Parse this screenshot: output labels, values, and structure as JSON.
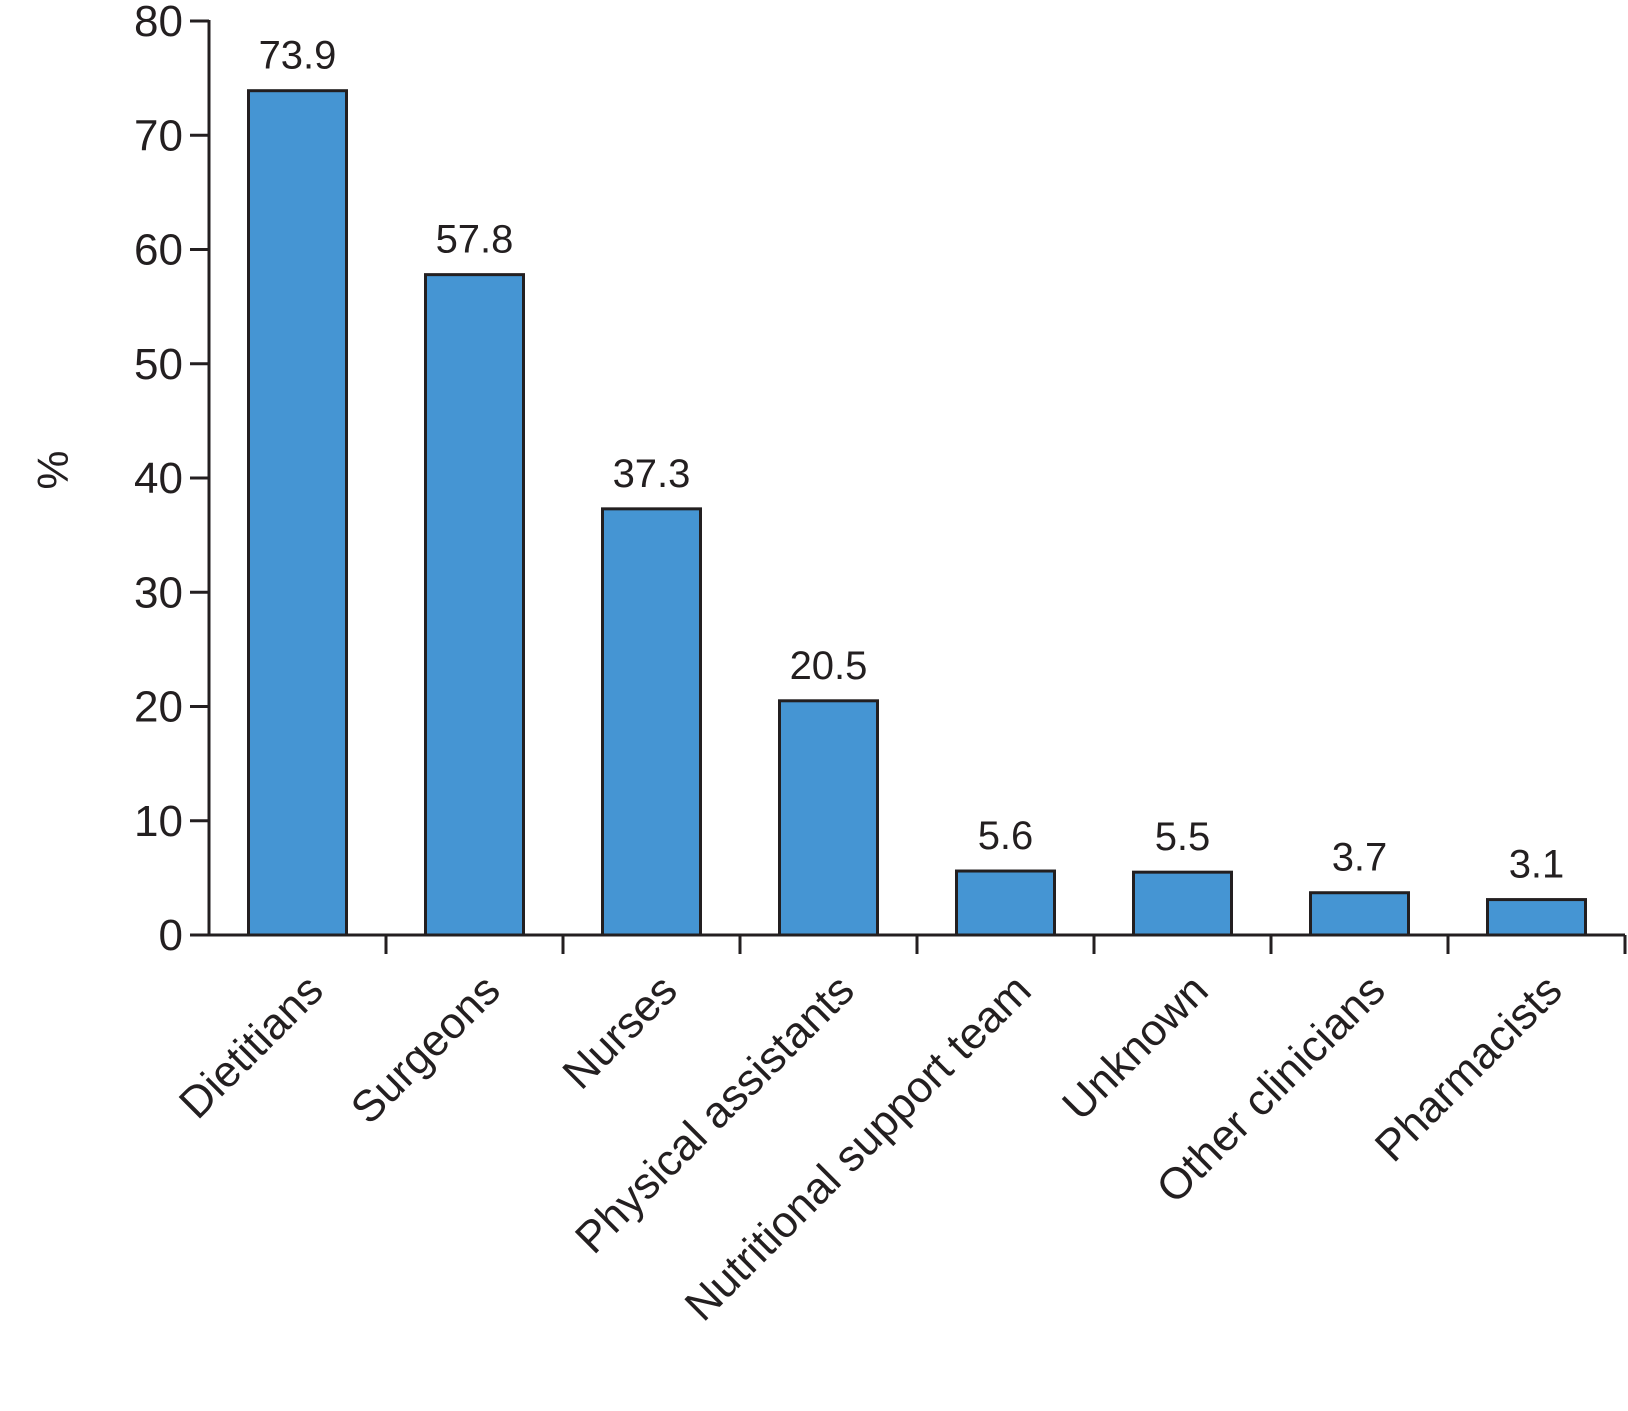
{
  "chart_data": {
    "type": "bar",
    "title": "",
    "xlabel": "",
    "ylabel": "%",
    "ylim": [
      0,
      80
    ],
    "yticks": [
      0,
      10,
      20,
      30,
      40,
      50,
      60,
      70,
      80
    ],
    "categories": [
      "Dietitians",
      "Surgeons",
      "Nurses",
      "Physical assistants",
      "Nutritional support team",
      "Unknown",
      "Other clinicians",
      "Pharmacists"
    ],
    "values": [
      73.9,
      57.8,
      37.3,
      20.5,
      5.6,
      5.5,
      3.7,
      3.1
    ],
    "value_labels": [
      "73.9",
      "57.8",
      "37.3",
      "20.5",
      "5.6",
      "5.5",
      "3.7",
      "3.1"
    ],
    "bar_color": "#4595d3",
    "grid": false,
    "legend": "none"
  }
}
